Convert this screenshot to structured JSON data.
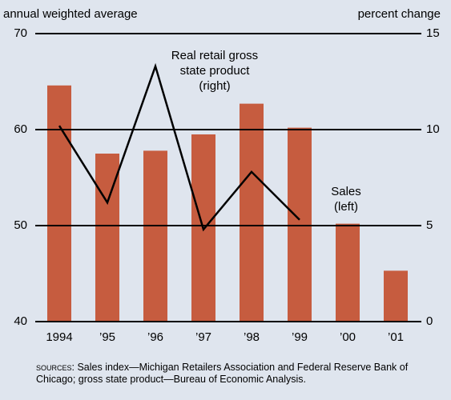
{
  "chart_data": {
    "type": "bar_line",
    "y_label": "annual weighted average",
    "y2_label": "percent change",
    "categories": [
      "1994",
      "’95",
      "’96",
      "’97",
      "’98",
      "’99",
      "’00",
      "’01"
    ],
    "series": [
      {
        "name": "Sales (left)",
        "type": "bar",
        "color": "#c65c3f",
        "values": [
          64.6,
          57.5,
          57.8,
          59.5,
          62.7,
          60.2,
          50.2,
          45.3
        ]
      },
      {
        "name": "Real retail gross state product (right)",
        "type": "line",
        "axis": "y2",
        "color": "#000000",
        "values": [
          10.2,
          6.2,
          13.3,
          4.8,
          7.8,
          5.3,
          null,
          null
        ]
      }
    ],
    "annotations": [
      {
        "lines": [
          "Real retail gross",
          "state product",
          "(right)"
        ]
      },
      {
        "lines": [
          "Sales",
          "(left)"
        ]
      }
    ],
    "ylim": [
      40,
      70
    ],
    "yticks": [
      40,
      50,
      60,
      70
    ],
    "y2lim": [
      0,
      15
    ],
    "y2ticks": [
      0,
      5,
      10,
      15
    ],
    "grid": true,
    "source_label": "sources:",
    "source_text": "Sales index—Michigan Retailers Association and Federal Reserve Bank of Chicago; gross state product—Bureau of Economic Analysis."
  }
}
